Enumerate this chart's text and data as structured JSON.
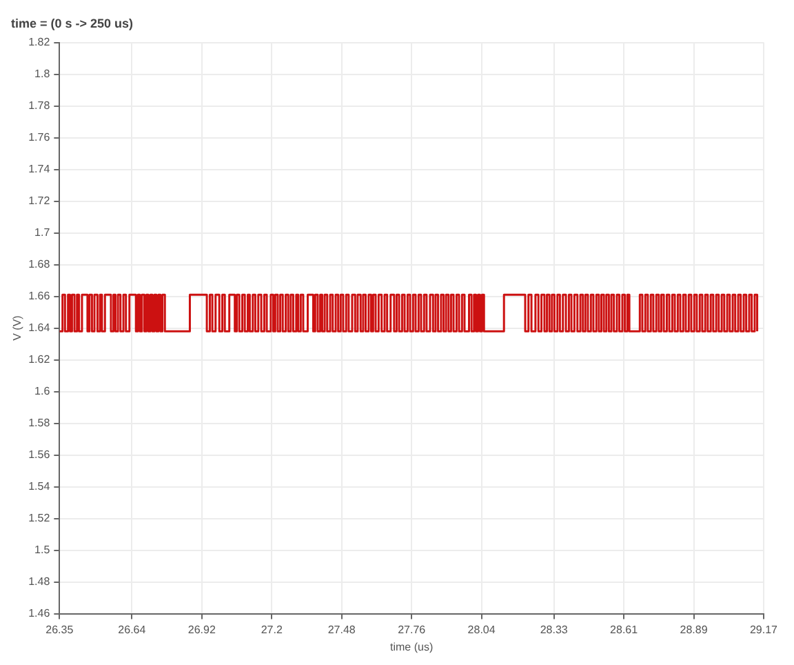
{
  "chart_data": {
    "type": "step",
    "title": "time = (0 s -> 250 us)",
    "xlabel": "time (us)",
    "ylabel": "V (V)",
    "xlim": [
      26.35,
      29.17
    ],
    "xticks": [
      26.35,
      26.64,
      26.92,
      27.2,
      27.48,
      27.76,
      28.04,
      28.33,
      28.61,
      28.89,
      29.17
    ],
    "ylim": [
      1.46,
      1.82
    ],
    "yticks": [
      1.46,
      1.48,
      1.5,
      1.52,
      1.54,
      1.56,
      1.58,
      1.6,
      1.62,
      1.64,
      1.66,
      1.68,
      1.7,
      1.72,
      1.74,
      1.76,
      1.78,
      1.8,
      1.82
    ],
    "grid": true,
    "legend": false,
    "marker": "none",
    "line_style": "solid",
    "series": [
      {
        "color": "#cc1111",
        "x": [
          26.35,
          26.362,
          26.372,
          26.384,
          26.392,
          26.4,
          26.41,
          26.42,
          26.428,
          26.44,
          26.462,
          26.47,
          26.48,
          26.49,
          26.502,
          26.512,
          26.52,
          26.532,
          26.556,
          26.566,
          26.574,
          26.584,
          26.594,
          26.606,
          26.616,
          26.63,
          26.656,
          26.664,
          26.672,
          26.68,
          26.69,
          26.698,
          26.706,
          26.714,
          26.722,
          26.73,
          26.738,
          26.746,
          26.754,
          26.762,
          26.772,
          26.872,
          26.94,
          26.952,
          26.962,
          26.975,
          26.99,
          27.002,
          27.012,
          27.03,
          27.052,
          27.06,
          27.07,
          27.082,
          27.092,
          27.104,
          27.112,
          27.124,
          27.134,
          27.146,
          27.158,
          27.17,
          27.18,
          27.196,
          27.206,
          27.214,
          27.224,
          27.234,
          27.244,
          27.256,
          27.266,
          27.276,
          27.286,
          27.298,
          27.306,
          27.316,
          27.326,
          27.344,
          27.366,
          27.374,
          27.384,
          27.394,
          27.402,
          27.412,
          27.422,
          27.434,
          27.444,
          27.456,
          27.466,
          27.476,
          27.486,
          27.498,
          27.508,
          27.522,
          27.534,
          27.544,
          27.556,
          27.566,
          27.576,
          27.588,
          27.598,
          27.606,
          27.616,
          27.628,
          27.64,
          27.652,
          27.662,
          27.676,
          27.69,
          27.7,
          27.71,
          27.722,
          27.732,
          27.744,
          27.754,
          27.766,
          27.776,
          27.788,
          27.798,
          27.81,
          27.82,
          27.834,
          27.846,
          27.856,
          27.866,
          27.878,
          27.888,
          27.898,
          27.908,
          27.918,
          27.928,
          27.94,
          27.95,
          27.962,
          27.972,
          27.99,
          28.0,
          28.01,
          28.018,
          28.026,
          28.034,
          28.042,
          28.05,
          28.13,
          28.215,
          28.228,
          28.24,
          28.256,
          28.268,
          28.28,
          28.292,
          28.302,
          28.312,
          28.322,
          28.332,
          28.344,
          28.354,
          28.366,
          28.378,
          28.39,
          28.4,
          28.412,
          28.424,
          28.436,
          28.446,
          28.456,
          28.466,
          28.478,
          28.488,
          28.5,
          28.51,
          28.52,
          28.53,
          28.54,
          28.55,
          28.56,
          28.57,
          28.582,
          28.592,
          28.604,
          28.614,
          28.624,
          28.632,
          28.674,
          28.684,
          28.696,
          28.706,
          28.718,
          28.728,
          28.74,
          28.75,
          28.76,
          28.77,
          28.782,
          28.792,
          28.804,
          28.814,
          28.826,
          28.836,
          28.848,
          28.858,
          28.87,
          28.88,
          28.892,
          28.902,
          28.914,
          28.924,
          28.936,
          28.946,
          28.958,
          28.968,
          28.98,
          28.99,
          29.002,
          29.012,
          29.024,
          29.034,
          29.046,
          29.056,
          29.068,
          29.078,
          29.09,
          29.1,
          29.112,
          29.122,
          29.134,
          29.144
        ],
        "values": [
          1.638,
          1.661,
          1.638,
          1.661,
          1.638,
          1.661,
          1.638,
          1.661,
          1.638,
          1.661,
          1.638,
          1.661,
          1.638,
          1.661,
          1.638,
          1.661,
          1.638,
          1.661,
          1.638,
          1.661,
          1.638,
          1.661,
          1.638,
          1.661,
          1.638,
          1.661,
          1.638,
          1.661,
          1.638,
          1.661,
          1.638,
          1.661,
          1.638,
          1.661,
          1.638,
          1.661,
          1.638,
          1.661,
          1.638,
          1.661,
          1.638,
          1.661,
          1.638,
          1.661,
          1.638,
          1.661,
          1.638,
          1.661,
          1.638,
          1.661,
          1.638,
          1.661,
          1.638,
          1.661,
          1.638,
          1.661,
          1.638,
          1.661,
          1.638,
          1.661,
          1.638,
          1.661,
          1.638,
          1.661,
          1.638,
          1.661,
          1.638,
          1.661,
          1.638,
          1.661,
          1.638,
          1.661,
          1.638,
          1.661,
          1.638,
          1.661,
          1.638,
          1.661,
          1.638,
          1.661,
          1.638,
          1.661,
          1.638,
          1.661,
          1.638,
          1.661,
          1.638,
          1.661,
          1.638,
          1.661,
          1.638,
          1.661,
          1.638,
          1.661,
          1.638,
          1.661,
          1.638,
          1.661,
          1.638,
          1.661,
          1.638,
          1.661,
          1.638,
          1.661,
          1.638,
          1.661,
          1.638,
          1.661,
          1.638,
          1.661,
          1.638,
          1.661,
          1.638,
          1.661,
          1.638,
          1.661,
          1.638,
          1.661,
          1.638,
          1.661,
          1.638,
          1.661,
          1.638,
          1.661,
          1.638,
          1.661,
          1.638,
          1.661,
          1.638,
          1.661,
          1.638,
          1.661,
          1.638,
          1.661,
          1.638,
          1.661,
          1.638,
          1.661,
          1.638,
          1.661,
          1.638,
          1.661,
          1.638,
          1.661,
          1.638,
          1.661,
          1.638,
          1.661,
          1.638,
          1.661,
          1.638,
          1.661,
          1.638,
          1.661,
          1.638,
          1.661,
          1.638,
          1.661,
          1.638,
          1.661,
          1.638,
          1.661,
          1.638,
          1.661,
          1.638,
          1.661,
          1.638,
          1.661,
          1.638,
          1.661,
          1.638,
          1.661,
          1.638,
          1.661,
          1.638,
          1.661,
          1.638,
          1.661,
          1.638,
          1.661,
          1.638,
          1.661,
          1.638,
          1.661,
          1.638,
          1.661,
          1.638,
          1.661,
          1.638,
          1.661,
          1.638,
          1.661,
          1.638,
          1.661,
          1.638,
          1.661,
          1.638,
          1.661,
          1.638,
          1.661,
          1.638,
          1.661,
          1.638,
          1.661,
          1.638,
          1.661,
          1.638,
          1.661,
          1.638,
          1.661,
          1.638,
          1.661,
          1.638,
          1.661,
          1.638,
          1.661,
          1.638,
          1.661,
          1.638,
          1.661,
          1.638,
          1.661,
          1.638,
          1.661,
          1.638,
          1.661,
          1.638
        ]
      }
    ]
  }
}
